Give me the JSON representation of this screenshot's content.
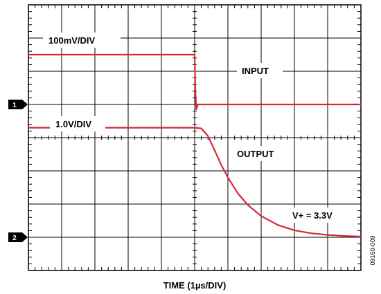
{
  "figure_id": "09160-009",
  "chart_data": {
    "type": "line",
    "title": "",
    "xlabel": "TIME (1µs/DIV)",
    "ylabel": "",
    "x_unit": "µs",
    "grid": true,
    "divisions": {
      "x": 10,
      "y": 8
    },
    "channel_markers": [
      "1",
      "2"
    ],
    "series": [
      {
        "name": "INPUT",
        "scale_label": "100mV/DIV",
        "color": "#d9253a",
        "x": [
          0,
          5,
          5.02,
          5.05,
          5.1,
          10
        ],
        "y_div": [
          1.5,
          1.5,
          0.4,
          -0.15,
          0,
          0
        ]
      },
      {
        "name": "OUTPUT",
        "scale_label": "1.0V/DIV",
        "annotation": "V+ = 3.3V",
        "color": "#d9253a",
        "x": [
          0,
          5,
          5.2,
          5.4,
          5.6,
          5.8,
          6.0,
          6.3,
          6.6,
          7.0,
          7.5,
          8.0,
          8.5,
          9.0,
          9.5,
          10
        ],
        "y_div": [
          3.3,
          3.3,
          3.28,
          3.05,
          2.62,
          2.18,
          1.8,
          1.32,
          0.97,
          0.64,
          0.37,
          0.21,
          0.12,
          0.07,
          0.04,
          0.02
        ]
      }
    ]
  }
}
